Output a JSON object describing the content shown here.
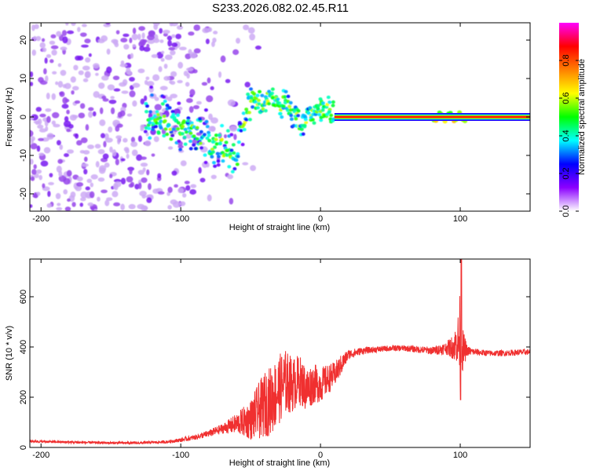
{
  "page_title": "S233.2026.082.02.45.R11",
  "chart_data": [
    {
      "type": "heatmap",
      "title": "S233.2026.082.02.45.R11",
      "xlabel": "Height of straight line (km)",
      "ylabel": "Frequency (Hz)",
      "xlim": [
        -208,
        150
      ],
      "ylim": [
        -24.5,
        24.5
      ],
      "x_ticks": [
        -200,
        -100,
        0,
        100
      ],
      "y_ticks": [
        -20,
        -10,
        0,
        10,
        20
      ],
      "tick_labels_x": [
        "-200",
        "-100",
        "0",
        "100"
      ],
      "tick_labels_y": [
        "-20",
        "-10",
        "0",
        "10",
        "20"
      ],
      "colorbar": {
        "label": "Normalized spectral amplitude",
        "range": [
          0,
          1
        ],
        "ticks": [
          0.0,
          0.2,
          0.4,
          0.6,
          0.8
        ],
        "tick_labels": [
          "0.0",
          "0.2",
          "0.4",
          "0.6",
          "0.8"
        ],
        "colormap": [
          "#ffffff",
          "#8b00ff",
          "#0000ff",
          "#00ffff",
          "#00ff00",
          "#ffff00",
          "#ff8000",
          "#ff0000",
          "#ff00ff"
        ]
      },
      "ridge": [
        {
          "x": -120,
          "f": 0.0
        },
        {
          "x": -110,
          "f": -1.5
        },
        {
          "x": -100,
          "f": -3.0
        },
        {
          "x": -90,
          "f": -4.5
        },
        {
          "x": -80,
          "f": -6.0
        },
        {
          "x": -70,
          "f": -8.0
        },
        {
          "x": -60,
          "f": -11.0
        },
        {
          "x": -52,
          "f": 3.0
        },
        {
          "x": -45,
          "f": 4.0
        },
        {
          "x": -35,
          "f": 5.0
        },
        {
          "x": -28,
          "f": 3.5
        },
        {
          "x": -20,
          "f": 1.5
        },
        {
          "x": -15,
          "f": -2.0
        },
        {
          "x": -8,
          "f": 0.5
        },
        {
          "x": 0,
          "f": 2.0
        },
        {
          "x": 8,
          "f": 1.0
        },
        {
          "x": 12,
          "f": 0.3
        },
        {
          "x": 150,
          "f": 0.0
        }
      ],
      "carrier_start_km": 10,
      "carrier_freq_hz": 0
    },
    {
      "type": "line",
      "xlabel": "Height of straight line (km)",
      "ylabel": "SNR (10 * v/v)",
      "xlim": [
        -208,
        150
      ],
      "ylim": [
        0,
        750
      ],
      "x_ticks": [
        -200,
        -100,
        0,
        100
      ],
      "y_ticks": [
        0,
        200,
        400,
        600
      ],
      "tick_labels_x": [
        "-200",
        "-100",
        "0",
        "100"
      ],
      "tick_labels_y": [
        "0",
        "200",
        "400",
        "600"
      ],
      "series_color": "#f03030",
      "series": [
        {
          "name": "SNR",
          "x": [
            -208,
            -190,
            -170,
            -150,
            -130,
            -110,
            -100,
            -90,
            -80,
            -70,
            -60,
            -50,
            -45,
            -40,
            -35,
            -30,
            -25,
            -20,
            -15,
            -10,
            -5,
            0,
            5,
            10,
            15,
            20,
            30,
            40,
            50,
            60,
            70,
            80,
            90,
            95,
            98,
            100,
            102,
            105,
            110,
            120,
            130,
            140,
            150
          ],
          "y": [
            25,
            22,
            20,
            18,
            18,
            22,
            30,
            40,
            55,
            75,
            95,
            110,
            140,
            170,
            190,
            230,
            260,
            250,
            270,
            230,
            255,
            250,
            270,
            290,
            330,
            370,
            385,
            390,
            395,
            395,
            390,
            385,
            395,
            400,
            420,
            430,
            390,
            385,
            380,
            375,
            375,
            378,
            380
          ],
          "noise_amp": [
            5,
            5,
            5,
            5,
            5,
            6,
            8,
            10,
            14,
            20,
            40,
            80,
            110,
            130,
            140,
            140,
            130,
            110,
            100,
            90,
            80,
            70,
            60,
            50,
            40,
            20,
            14,
            12,
            12,
            12,
            14,
            16,
            25,
            50,
            90,
            200,
            80,
            20,
            14,
            12,
            12,
            12,
            12
          ]
        }
      ]
    }
  ]
}
